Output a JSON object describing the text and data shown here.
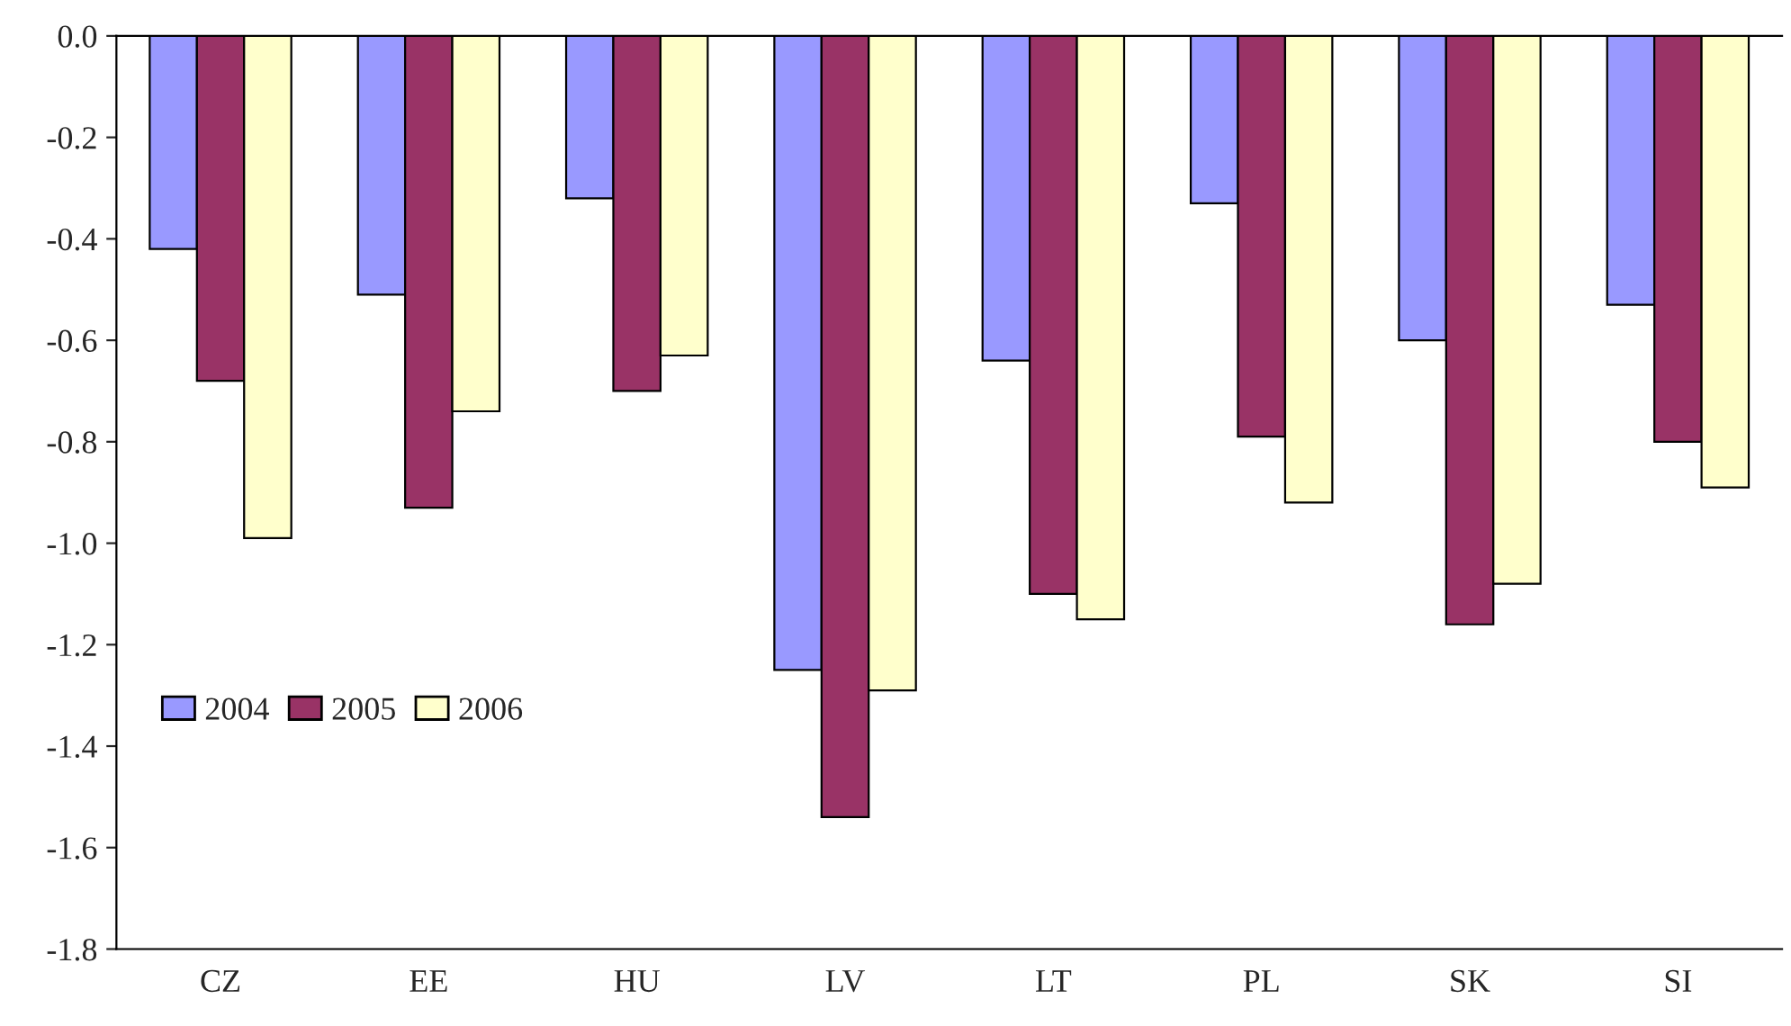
{
  "chart_data": {
    "type": "bar",
    "categories": [
      "CZ",
      "EE",
      "HU",
      "LV",
      "LT",
      "PL",
      "SK",
      "SI"
    ],
    "series": [
      {
        "name": "2004",
        "color": "#9999ff",
        "values": [
          -0.42,
          -0.51,
          -0.32,
          -1.25,
          -0.64,
          -0.33,
          -0.6,
          -0.53
        ]
      },
      {
        "name": "2005",
        "color": "#993366",
        "values": [
          -0.68,
          -0.93,
          -0.7,
          -1.54,
          -1.1,
          -0.79,
          -1.16,
          -0.8
        ]
      },
      {
        "name": "2006",
        "color": "#ffffcc",
        "values": [
          -0.99,
          -0.74,
          -0.63,
          -1.29,
          -1.15,
          -0.92,
          -1.08,
          -0.89
        ]
      }
    ],
    "ylim": [
      -1.8,
      0.0
    ],
    "yticks": [
      -1.8,
      -1.6,
      -1.4,
      -1.2,
      {
        "value": -1,
        "label": "-1.0"
      },
      -0.8,
      -0.6,
      -0.4,
      -0.2,
      {
        "value": 0,
        "label": "0.0"
      }
    ],
    "grid": false,
    "legend": "left"
  }
}
